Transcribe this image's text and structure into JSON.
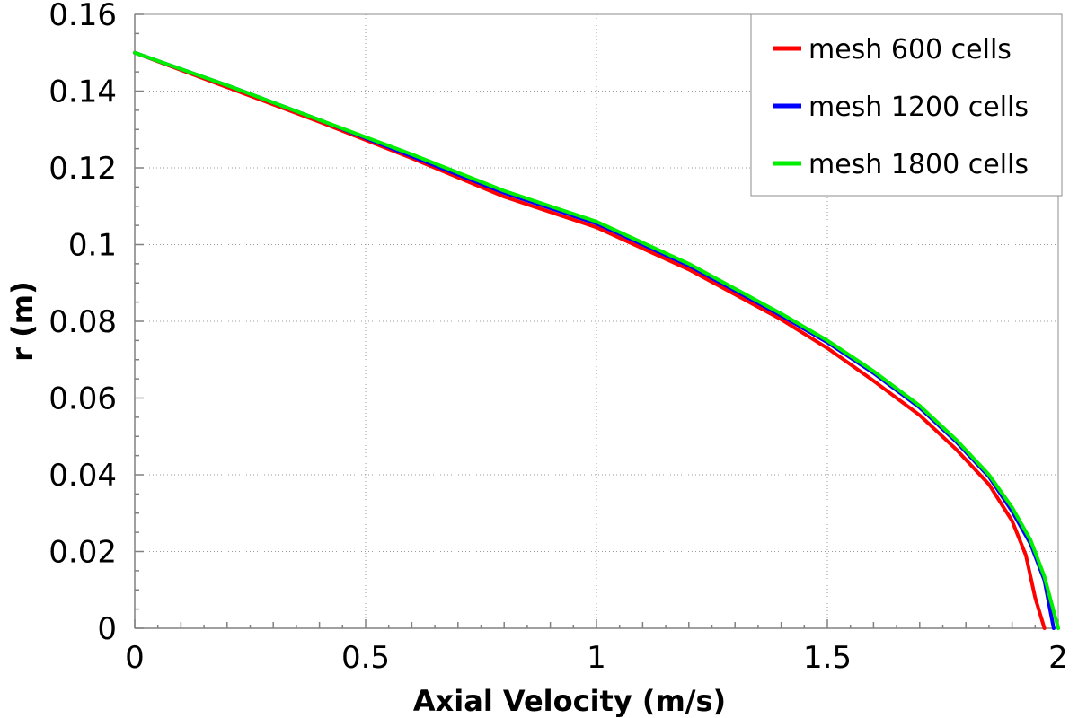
{
  "chart_data": {
    "type": "line",
    "title": "",
    "xlabel": "Axial Velocity (m/s)",
    "ylabel": "r (m)",
    "xlim": [
      0,
      2
    ],
    "ylim": [
      0,
      0.16
    ],
    "xticks": [
      0,
      0.5,
      1,
      1.5,
      2
    ],
    "xtick_labels": [
      "0",
      "0.5",
      "1",
      "1.5",
      "2"
    ],
    "yticks": [
      0,
      0.02,
      0.04,
      0.06,
      0.08,
      0.1,
      0.12,
      0.14,
      0.16
    ],
    "ytick_labels": [
      "0",
      "0.02",
      "0.04",
      "0.06",
      "0.08",
      "0.1",
      "0.12",
      "0.14",
      "0.16"
    ],
    "grid": true,
    "legend_position": "top-right",
    "series": [
      {
        "name": "mesh 600 cells",
        "color": "#ff0000",
        "x": [
          0,
          0.2,
          0.4,
          0.6,
          0.8,
          1.0,
          1.2,
          1.4,
          1.5,
          1.6,
          1.7,
          1.78,
          1.85,
          1.9,
          1.93,
          1.95,
          1.97
        ],
        "y": [
          0.15,
          0.141,
          0.132,
          0.1225,
          0.1125,
          0.1045,
          0.0935,
          0.0805,
          0.073,
          0.0645,
          0.0555,
          0.0465,
          0.0375,
          0.028,
          0.019,
          0.008,
          0
        ]
      },
      {
        "name": "mesh 1200 cells",
        "color": "#0000ff",
        "x": [
          0,
          0.2,
          0.4,
          0.6,
          0.8,
          1.0,
          1.2,
          1.4,
          1.5,
          1.6,
          1.7,
          1.78,
          1.85,
          1.9,
          1.94,
          1.97,
          1.99
        ],
        "y": [
          0.15,
          0.1415,
          0.1325,
          0.123,
          0.1135,
          0.1055,
          0.0945,
          0.0815,
          0.0745,
          0.0665,
          0.0575,
          0.0485,
          0.0395,
          0.0305,
          0.022,
          0.0125,
          0
        ]
      },
      {
        "name": "mesh 1800 cells",
        "color": "#00ee00",
        "x": [
          0,
          0.2,
          0.4,
          0.6,
          0.8,
          1.0,
          1.2,
          1.4,
          1.5,
          1.6,
          1.7,
          1.78,
          1.85,
          1.9,
          1.94,
          1.97,
          2.0
        ],
        "y": [
          0.15,
          0.1415,
          0.1325,
          0.1235,
          0.114,
          0.106,
          0.095,
          0.082,
          0.075,
          0.067,
          0.058,
          0.049,
          0.04,
          0.0315,
          0.023,
          0.0135,
          0
        ]
      }
    ]
  }
}
